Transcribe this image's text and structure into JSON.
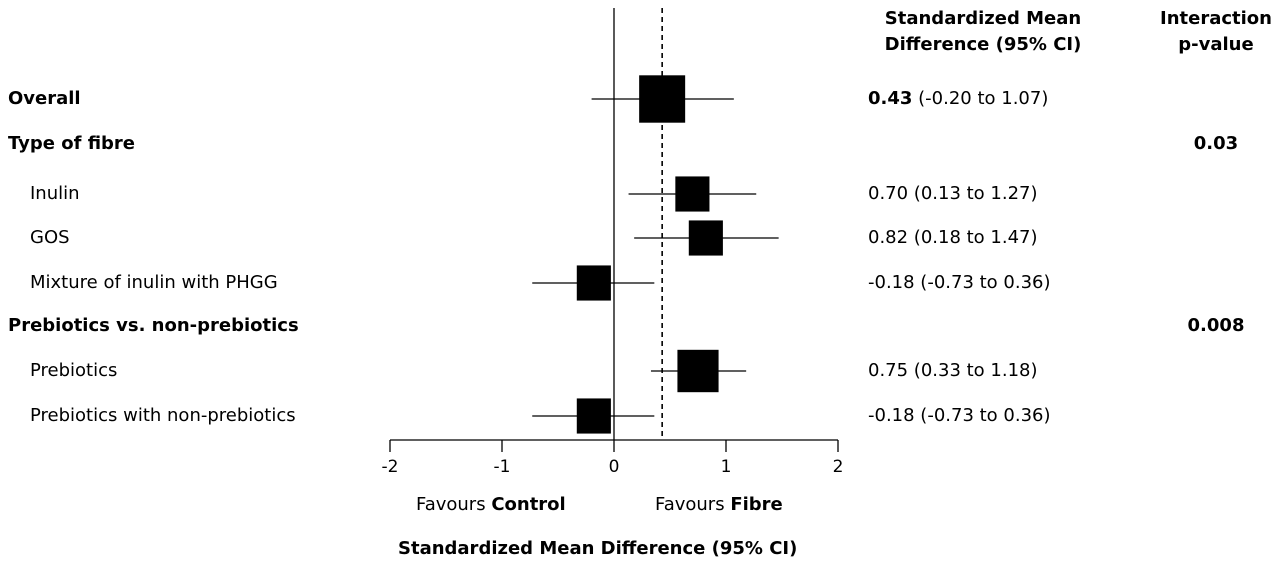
{
  "headers": {
    "smd_line1": "Standardized Mean",
    "smd_line2": "Difference (95% CI)",
    "interaction_line1": "Interaction",
    "interaction_line2": "p-value"
  },
  "rows": [
    {
      "label": "Overall",
      "bold_label": true,
      "ci_bold": "0.43",
      "ci_rest": " (-0.20 to 1.07)",
      "p": ""
    },
    {
      "label": "Type of fibre",
      "bold_label": true,
      "ci_bold": "",
      "ci_rest": "",
      "p": "0.03"
    },
    {
      "label": "Inulin",
      "bold_label": false,
      "ci_bold": "",
      "ci_rest": "0.70 (0.13 to 1.27)",
      "p": ""
    },
    {
      "label": "GOS",
      "bold_label": false,
      "ci_bold": "",
      "ci_rest": "0.82 (0.18 to 1.47)",
      "p": ""
    },
    {
      "label": "Mixture of inulin with PHGG",
      "bold_label": false,
      "ci_bold": "",
      "ci_rest": "-0.18 (-0.73 to 0.36)",
      "p": ""
    },
    {
      "label": "Prebiotics vs. non-prebiotics",
      "bold_label": true,
      "ci_bold": "",
      "ci_rest": "",
      "p": "0.008"
    },
    {
      "label": "Prebiotics",
      "bold_label": false,
      "ci_bold": "",
      "ci_rest": "0.75 (0.33 to 1.18)",
      "p": ""
    },
    {
      "label": "Prebiotics with non-prebiotics",
      "bold_label": false,
      "ci_bold": "",
      "ci_rest": "-0.18 (-0.73 to 0.36)",
      "p": ""
    }
  ],
  "favours": {
    "left_prefix": "Favours ",
    "left_bold": "Control",
    "right_prefix": "Favours ",
    "right_bold": "Fibre"
  },
  "colors": {
    "ink": "#000000"
  },
  "chart_data": {
    "type": "forest",
    "xlabel": "Standardized Mean Difference (95% CI)",
    "xlim": [
      -2,
      2
    ],
    "xticks": [
      -2,
      -1,
      0,
      1,
      2
    ],
    "null_line": 0,
    "pooled_reference_line": 0.43,
    "points": [
      {
        "row": 0,
        "est": 0.43,
        "lo": -0.2,
        "hi": 1.07,
        "weight": 1.0
      },
      {
        "row": 2,
        "est": 0.7,
        "lo": 0.13,
        "hi": 1.27,
        "weight": 0.55
      },
      {
        "row": 3,
        "est": 0.82,
        "lo": 0.18,
        "hi": 1.47,
        "weight": 0.55
      },
      {
        "row": 4,
        "est": -0.18,
        "lo": -0.73,
        "hi": 0.36,
        "weight": 0.55
      },
      {
        "row": 6,
        "est": 0.75,
        "lo": 0.33,
        "hi": 1.18,
        "weight": 0.8
      },
      {
        "row": 7,
        "est": -0.18,
        "lo": -0.73,
        "hi": 0.36,
        "weight": 0.55
      }
    ]
  }
}
